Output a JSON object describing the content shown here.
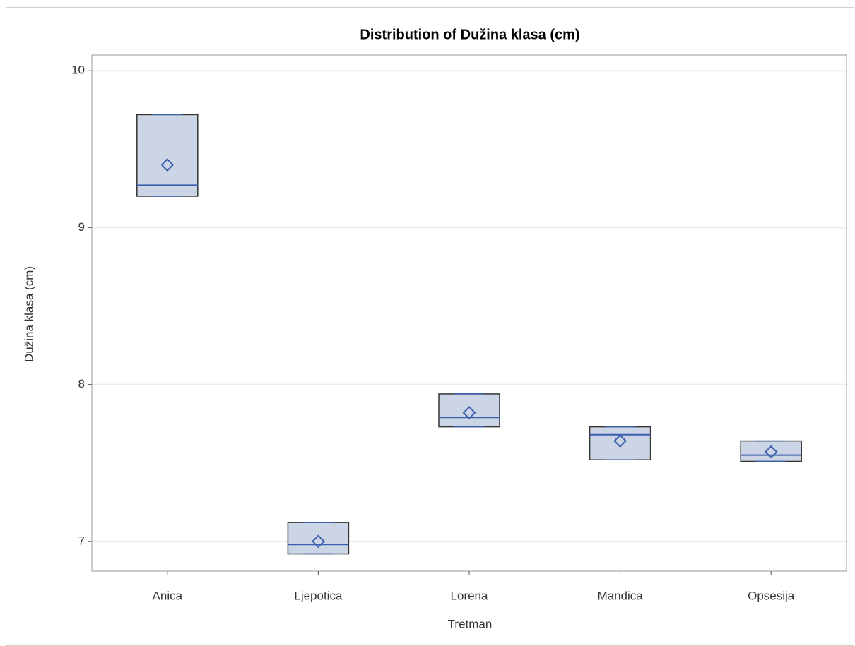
{
  "chart_data": {
    "type": "box",
    "title": "Distribution of Dužina klasa (cm)",
    "x_label": "Tretman",
    "y_label": "Dužina klasa (cm)",
    "categories": [
      "Anica",
      "Ljepotica",
      "Lorena",
      "Mandica",
      "Opsesija"
    ],
    "boxes": [
      {
        "min": 9.2,
        "q1": 9.2,
        "median": 9.27,
        "q3": 9.72,
        "max": 9.72,
        "mean": 9.4
      },
      {
        "min": 6.92,
        "q1": 6.92,
        "median": 6.98,
        "q3": 7.12,
        "max": 7.12,
        "mean": 7.0
      },
      {
        "min": 7.73,
        "q1": 7.73,
        "median": 7.79,
        "q3": 7.94,
        "max": 7.94,
        "mean": 7.82
      },
      {
        "min": 7.52,
        "q1": 7.52,
        "median": 7.68,
        "q3": 7.73,
        "max": 7.73,
        "mean": 7.64
      },
      {
        "min": 7.51,
        "q1": 7.51,
        "median": 7.55,
        "q3": 7.64,
        "max": 7.64,
        "mean": 7.57
      }
    ],
    "fill_color": "#cbd5e5",
    "line_color": "#3b5fae",
    "edge_color": "#333333",
    "ylim": [
      6.81,
      10.1
    ],
    "yticks": [
      7,
      8,
      9,
      10
    ],
    "grid": true
  }
}
